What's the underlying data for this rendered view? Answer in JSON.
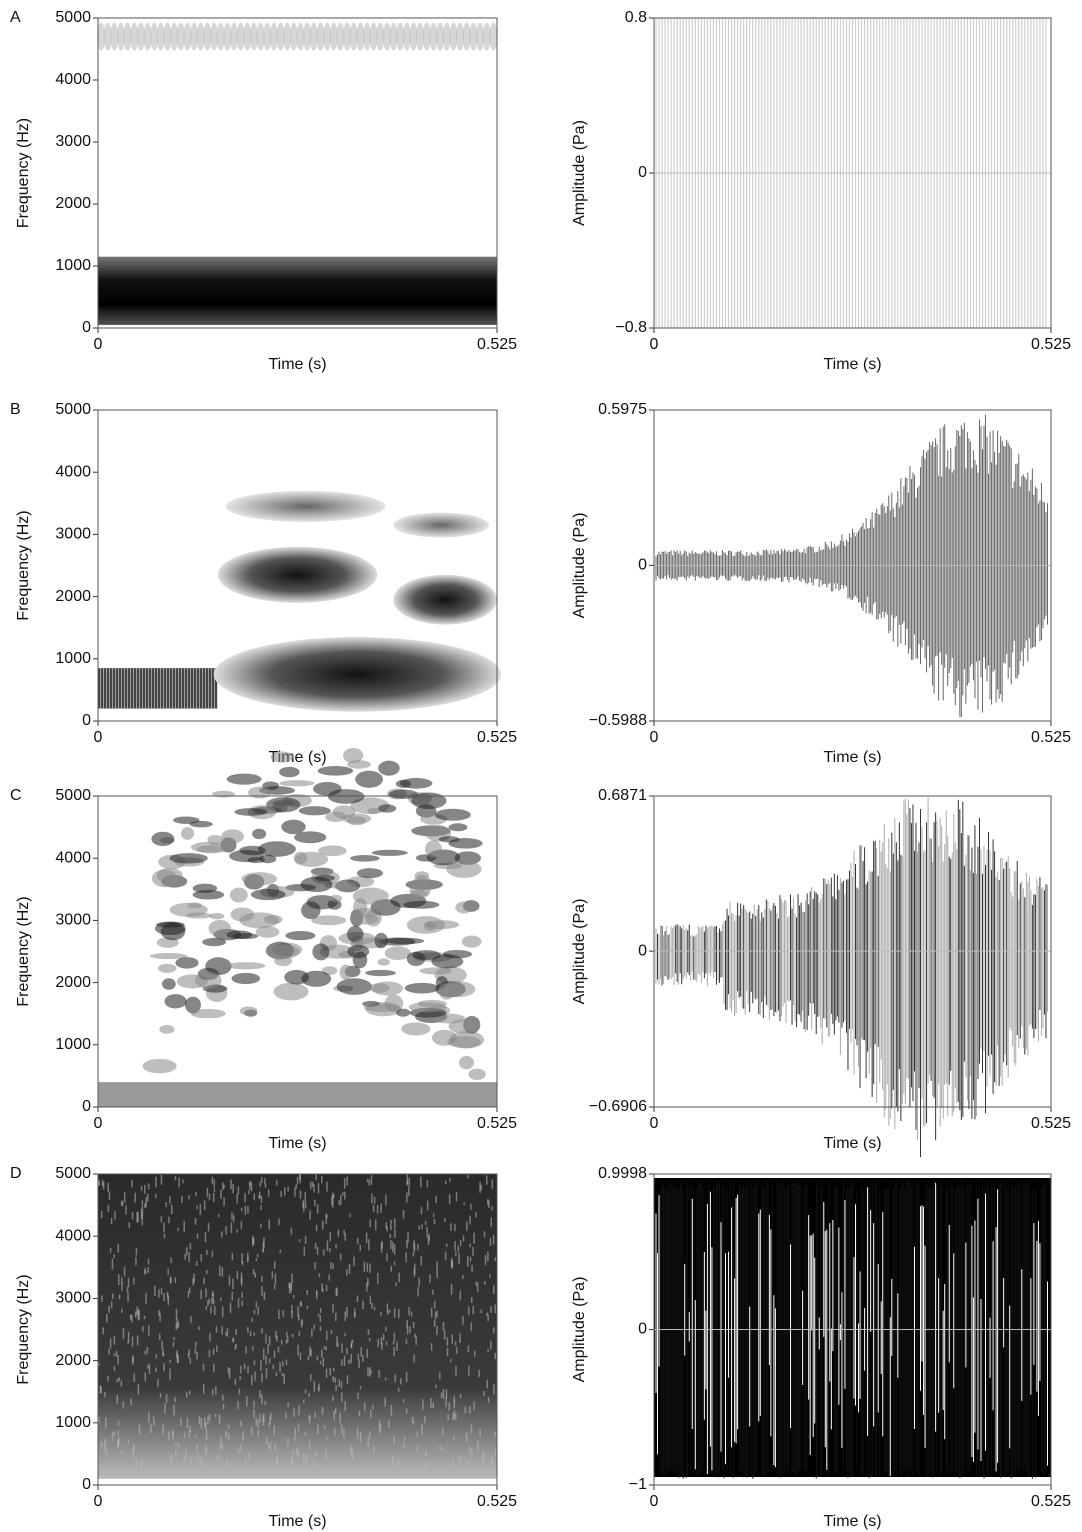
{
  "chart_data": [
    {
      "type": "spectrogram",
      "panel": "A",
      "xlabel": "Time (s)",
      "ylabel": "Frequency (Hz)",
      "xlim": [
        0,
        0.525
      ],
      "xticks": [
        0,
        0.525
      ],
      "ylim": [
        0,
        5000
      ],
      "yticks": [
        0,
        1000,
        2000,
        3000,
        4000,
        5000
      ]
    },
    {
      "type": "waveform",
      "xlabel": "Time (s)",
      "ylabel": "Amplitude (Pa)",
      "xlim": [
        0,
        0.525
      ],
      "xticks": [
        0,
        0.525
      ],
      "ylim": [
        -0.8,
        0.8
      ],
      "yticks": [
        {
          "value": -0.8,
          "label": "−0.8"
        },
        0,
        0.8
      ],
      "zero_line": true
    },
    {
      "type": "spectrogram",
      "panel": "B",
      "xlabel": "Time (s)",
      "ylabel": "Frequency (Hz)",
      "xlim": [
        0,
        0.525
      ],
      "xticks": [
        0,
        0.525
      ],
      "ylim": [
        0,
        5000
      ],
      "yticks": [
        0,
        1000,
        2000,
        3000,
        4000,
        5000
      ]
    },
    {
      "type": "waveform",
      "xlabel": "Time (s)",
      "ylabel": "Amplitude (Pa)",
      "xlim": [
        0,
        0.525
      ],
      "xticks": [
        0,
        0.525
      ],
      "ylim": [
        -0.5988,
        0.5975
      ],
      "yticks": [
        {
          "value": -0.5988,
          "label": "−0.5988"
        },
        0,
        0.5975
      ],
      "zero_line": true
    },
    {
      "type": "spectrogram",
      "panel": "C",
      "xlabel": "Time (s)",
      "ylabel": "Frequency (Hz)",
      "xlim": [
        0,
        0.525
      ],
      "xticks": [
        0,
        0.525
      ],
      "ylim": [
        0,
        5000
      ],
      "yticks": [
        0,
        1000,
        2000,
        3000,
        4000,
        5000
      ]
    },
    {
      "type": "waveform",
      "xlabel": "Time (s)",
      "ylabel": "Amplitude (Pa)",
      "xlim": [
        0,
        0.525
      ],
      "xticks": [
        0,
        0.525
      ],
      "ylim": [
        -0.6906,
        0.6871
      ],
      "yticks": [
        {
          "value": -0.6906,
          "label": "−0.6906"
        },
        0,
        0.6871
      ],
      "zero_line": true
    },
    {
      "type": "spectrogram",
      "panel": "D",
      "xlabel": "Time (s)",
      "ylabel": "Frequency (Hz)",
      "xlim": [
        0,
        0.525
      ],
      "xticks": [
        0,
        0.525
      ],
      "ylim": [
        0,
        5000
      ],
      "yticks": [
        0,
        1000,
        2000,
        3000,
        4000,
        5000
      ]
    },
    {
      "type": "waveform",
      "xlabel": "Time (s)",
      "ylabel": "Amplitude (Pa)",
      "xlim": [
        0,
        0.525
      ],
      "xticks": [
        0,
        0.525
      ],
      "ylim": [
        {
          "value": -1,
          "label": "−1"
        },
        0.9998
      ],
      "yticks": [
        {
          "value": -1,
          "label": "−1"
        },
        0,
        0.9998
      ],
      "zero_line": true
    }
  ]
}
